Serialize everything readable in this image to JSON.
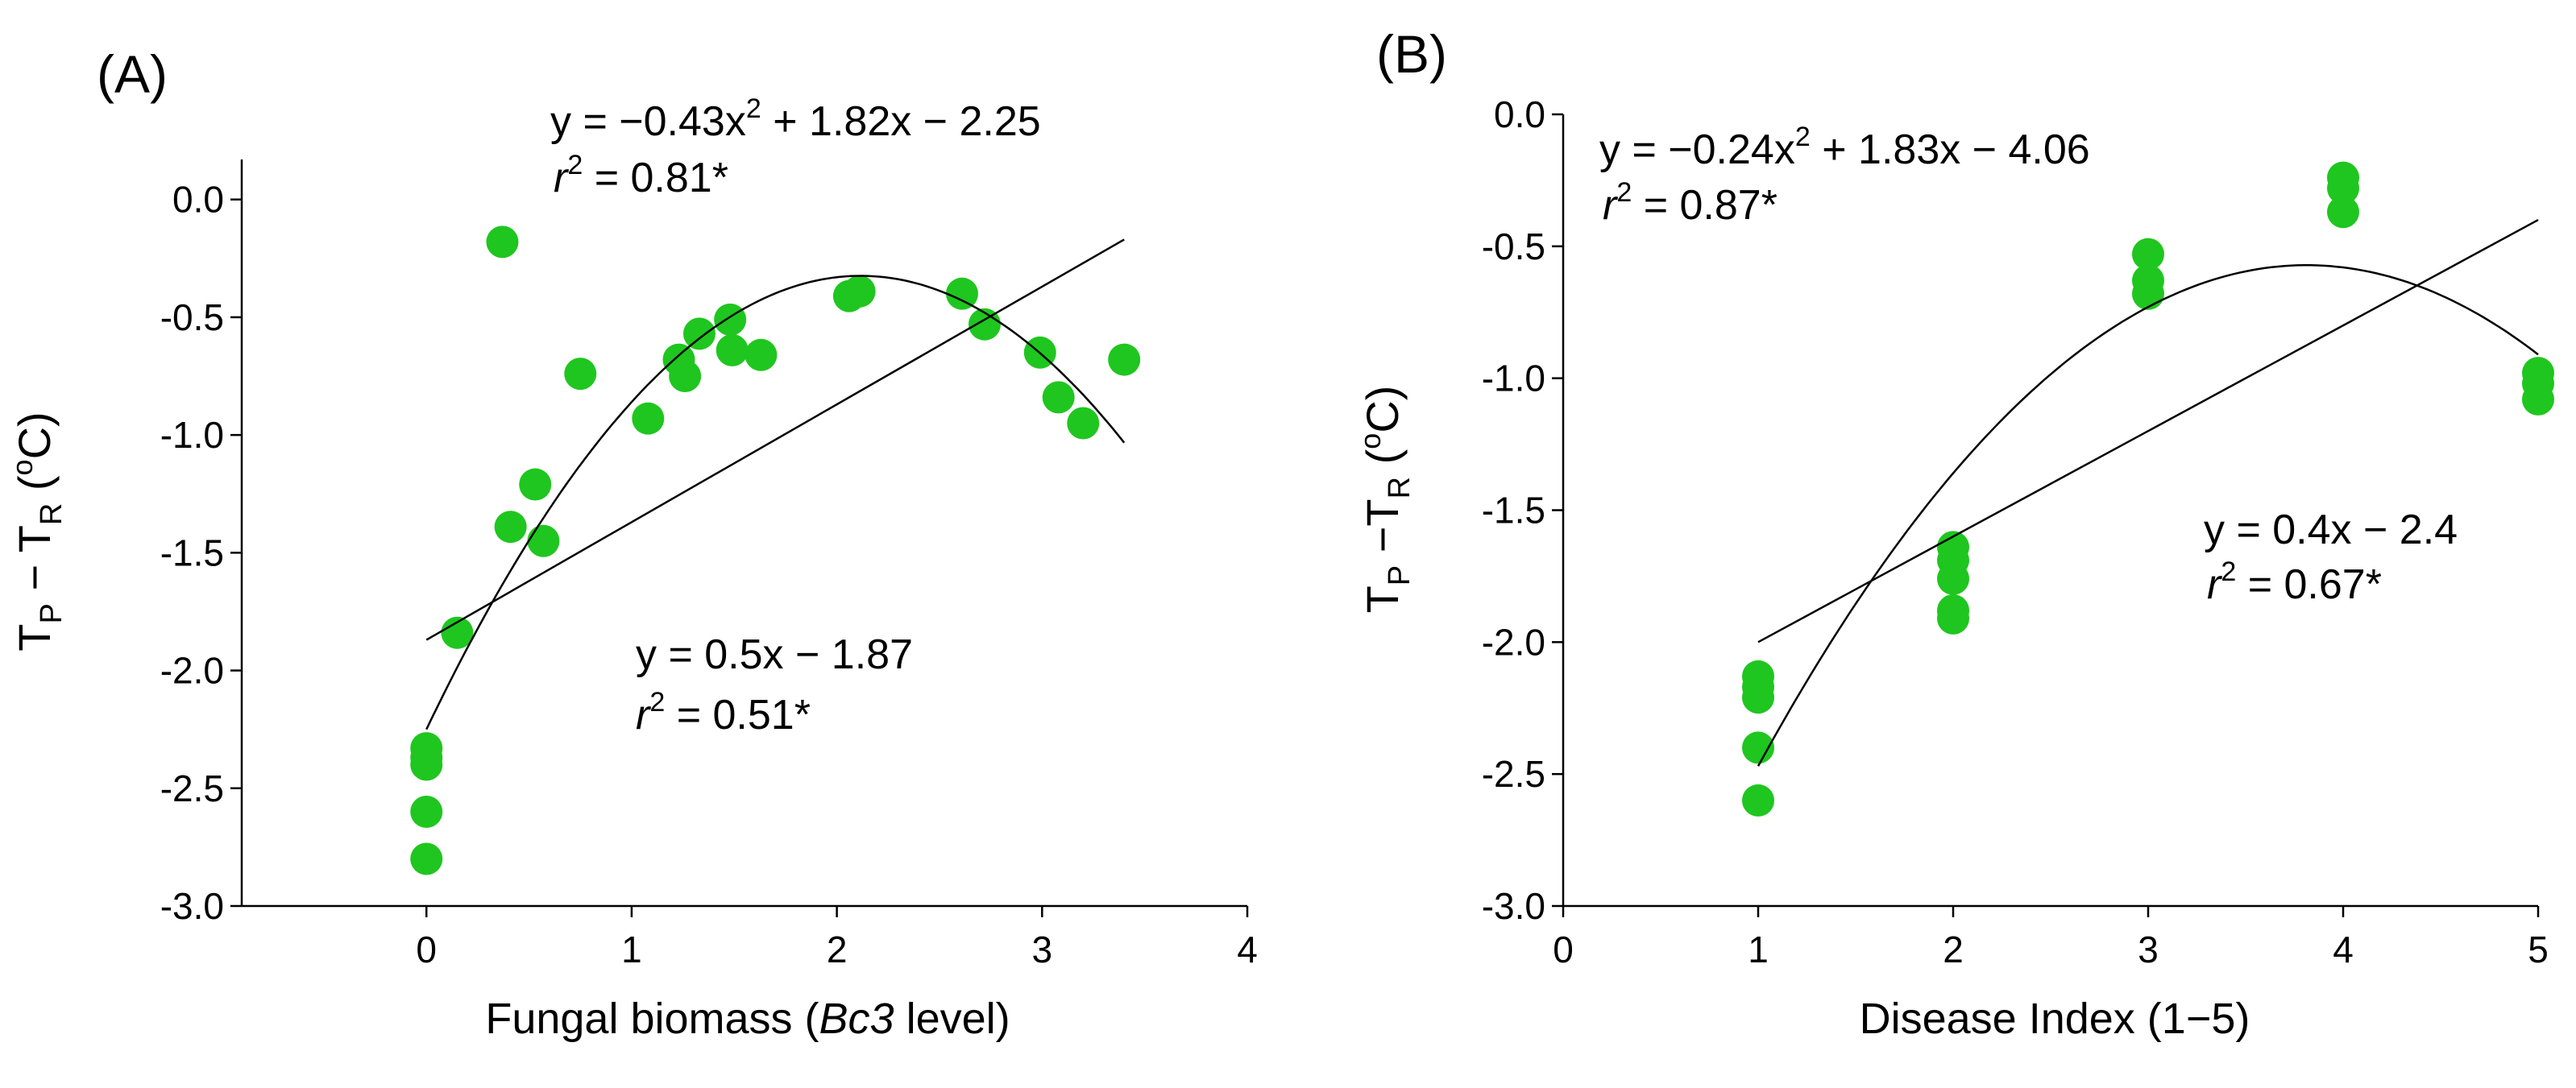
{
  "colors": {
    "points": "#1fc61f",
    "lines": "#000000",
    "text": "#000000"
  },
  "chart_data": [
    {
      "type": "scatter",
      "panel_label": "(A)",
      "xlabel": {
        "pre": "Fungal biomass (",
        "italic": "Bc3",
        "post": " level)"
      },
      "ylabel": {
        "t": "T",
        "sub_p": "P",
        "minus": " − T",
        "sub_r": "R",
        "unit_open": " (",
        "deg": "o",
        "unit_close": "C)"
      },
      "xlim": [
        -0.9,
        4
      ],
      "ylim": [
        -3.0,
        0.17
      ],
      "xticks": [
        0,
        1,
        2,
        3,
        4
      ],
      "xtick_labels": [
        "0",
        "1",
        "2",
        "3",
        "4"
      ],
      "yticks": [
        0.0,
        -0.5,
        -1.0,
        -1.5,
        -2.0,
        -2.5,
        -3.0
      ],
      "ytick_labels": [
        "0.0",
        "-0.5",
        "-1.0",
        "-1.5",
        "-2.0",
        "-2.5",
        "-3.0"
      ],
      "points": {
        "x": [
          0,
          0,
          0,
          0,
          0,
          0.15,
          0.37,
          0.41,
          0.53,
          0.57,
          0.75,
          1.08,
          1.23,
          1.26,
          1.33,
          1.48,
          1.49,
          1.63,
          2.06,
          2.11,
          2.61,
          2.72,
          2.99,
          3.08,
          3.2,
          3.4
        ],
        "y": [
          -2.33,
          -2.37,
          -2.4,
          -2.6,
          -2.8,
          -1.84,
          -0.18,
          -1.39,
          -1.21,
          -1.45,
          -0.74,
          -0.93,
          -0.68,
          -0.75,
          -0.57,
          -0.51,
          -0.64,
          -0.66,
          -0.41,
          -0.39,
          -0.4,
          -0.53,
          -0.65,
          -0.84,
          -0.95,
          -0.68
        ]
      },
      "quadratic_fit": {
        "coefficients": [
          -0.43,
          1.82,
          -2.25
        ],
        "x_range": [
          0,
          3.4
        ],
        "equation_pre": "y = −0.43x",
        "equation_exp": "2",
        "equation_post": " + 1.82x − 2.25",
        "r2_symbol": "r",
        "r2_exp": "2",
        "r2_value": " = 0.81*"
      },
      "linear_fit": {
        "slope": 0.5,
        "intercept": -1.87,
        "x_range": [
          0,
          3.4
        ],
        "equation": "y = 0.5x − 1.87",
        "r2_symbol": "r",
        "r2_exp": "2",
        "r2_value": " = 0.51*"
      }
    },
    {
      "type": "scatter",
      "panel_label": "(B)",
      "xlabel": {
        "pre": "Disease Index (1−5)",
        "italic": "",
        "post": ""
      },
      "ylabel": {
        "t": "T",
        "sub_p": "P",
        "minus": " −T",
        "sub_r": "R",
        "unit_open": " (",
        "deg": "o",
        "unit_close": "C)"
      },
      "xlim": [
        0,
        5
      ],
      "ylim": [
        -3.0,
        0.0
      ],
      "xticks": [
        0,
        1,
        2,
        3,
        4,
        5
      ],
      "xtick_labels": [
        "0",
        "1",
        "2",
        "3",
        "4",
        "5"
      ],
      "yticks": [
        0.0,
        -0.5,
        -1.0,
        -1.5,
        -2.0,
        -2.5,
        -3.0
      ],
      "ytick_labels": [
        "0.0",
        "-0.5",
        "-1.0",
        "-1.5",
        "-2.0",
        "-2.5",
        "-3.0"
      ],
      "points": {
        "x": [
          1,
          1,
          1,
          1,
          1,
          2,
          2,
          2,
          2,
          2,
          3,
          3,
          3,
          4,
          4,
          4,
          5,
          5,
          5
        ],
        "y": [
          -2.13,
          -2.17,
          -2.21,
          -2.4,
          -2.6,
          -1.64,
          -1.69,
          -1.76,
          -1.88,
          -1.91,
          -0.53,
          -0.63,
          -0.68,
          -0.24,
          -0.28,
          -0.37,
          -0.98,
          -1.02,
          -1.08
        ]
      },
      "quadratic_fit": {
        "coefficients": [
          -0.24,
          1.83,
          -4.06
        ],
        "x_range": [
          1,
          5
        ],
        "equation_pre": "y = −0.24x",
        "equation_exp": "2",
        "equation_post": " + 1.83x − 4.06",
        "r2_symbol": "r",
        "r2_exp": "2",
        "r2_value": " = 0.87*"
      },
      "linear_fit": {
        "slope": 0.4,
        "intercept": -2.4,
        "x_range": [
          1,
          5
        ],
        "equation": "y = 0.4x − 2.4",
        "r2_symbol": "r",
        "r2_exp": "2",
        "r2_value": " = 0.67*"
      }
    }
  ]
}
